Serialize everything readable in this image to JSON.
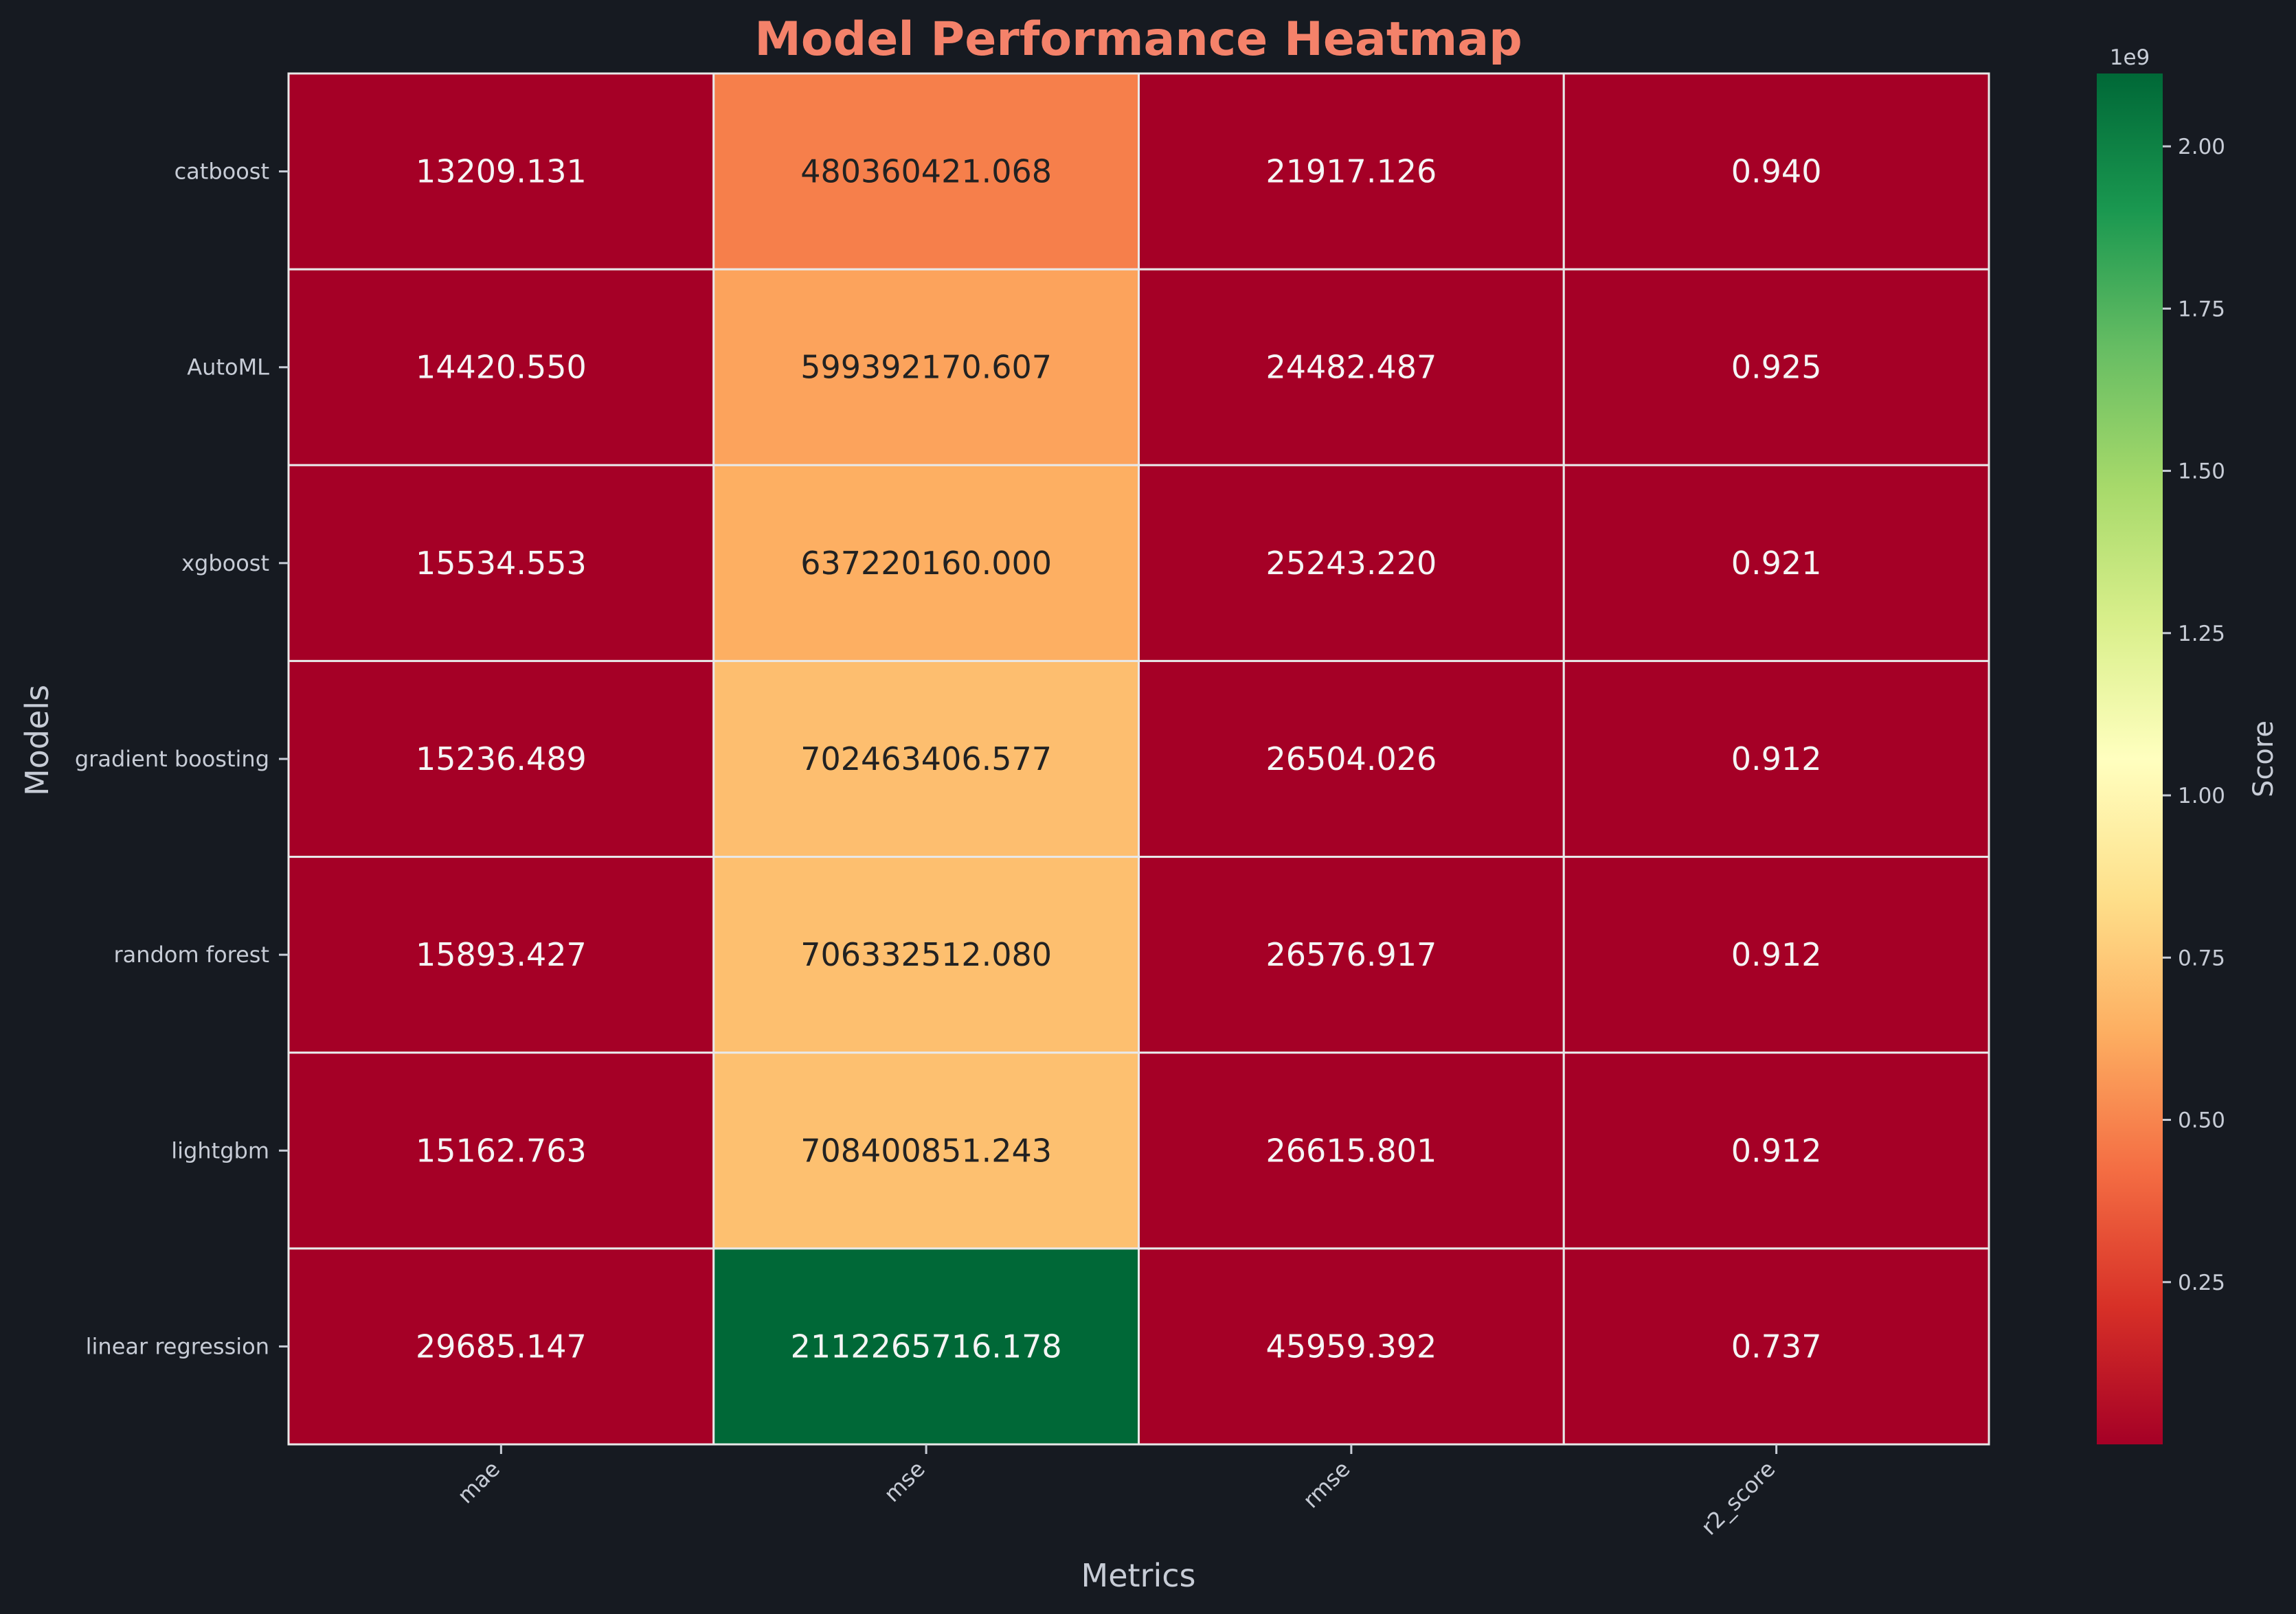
{
  "chart_data": {
    "type": "heatmap",
    "title": "Model Performance Heatmap",
    "xlabel": "Metrics",
    "ylabel": "Models",
    "x_categories": [
      "mae",
      "mse",
      "rmse",
      "r2_score"
    ],
    "y_categories": [
      "catboost",
      "AutoML",
      "xgboost",
      "gradient boosting",
      "random forest",
      "lightgbm",
      "linear regression"
    ],
    "values": [
      [
        13209.131,
        480360421.068,
        21917.126,
        0.94
      ],
      [
        14420.55,
        599392170.607,
        24482.487,
        0.925
      ],
      [
        15534.553,
        637220160.0,
        25243.22,
        0.921
      ],
      [
        15236.489,
        702463406.577,
        26504.026,
        0.912
      ],
      [
        15893.427,
        706332512.08,
        26576.917,
        0.912
      ],
      [
        15162.763,
        708400851.243,
        26615.801,
        0.912
      ],
      [
        29685.147,
        2112265716.178,
        45959.392,
        0.737
      ]
    ],
    "cell_labels": [
      [
        "13209.131",
        "480360421.068",
        "21917.126",
        "0.940"
      ],
      [
        "14420.550",
        "599392170.607",
        "24482.487",
        "0.925"
      ],
      [
        "15534.553",
        "637220160.000",
        "25243.220",
        "0.921"
      ],
      [
        "15236.489",
        "702463406.577",
        "26504.026",
        "0.912"
      ],
      [
        "15893.427",
        "706332512.080",
        "26576.917",
        "0.912"
      ],
      [
        "15162.763",
        "708400851.243",
        "26615.801",
        "0.912"
      ],
      [
        "29685.147",
        "2112265716.178",
        "45959.392",
        "0.737"
      ]
    ],
    "colormap": "RdYlGn",
    "vmin": 0.737,
    "vmax": 2112265716.178,
    "colorbar": {
      "label": "Score",
      "offset_text": "1e9",
      "ticks": [
        0.25,
        0.5,
        0.75,
        1.0,
        1.25,
        1.5,
        1.75,
        2.0
      ],
      "tick_labels": [
        "0.25",
        "0.50",
        "0.75",
        "1.00",
        "1.25",
        "1.50",
        "1.75",
        "2.00"
      ],
      "tick_scale": 1000000000
    },
    "grid": false
  },
  "colors": {
    "background": "#161a21",
    "title": "#f4826a",
    "axis_text": "#c7ccd6",
    "cell_border": "#e8e8e8",
    "text_light": "#f5f5f5",
    "text_dark": "#222222",
    "colormap_stops": [
      "#a50026",
      "#d73027",
      "#f46d43",
      "#fdae61",
      "#fee08b",
      "#ffffbf",
      "#d9ef8b",
      "#a6d96a",
      "#66bd63",
      "#1a9850",
      "#006837"
    ]
  }
}
